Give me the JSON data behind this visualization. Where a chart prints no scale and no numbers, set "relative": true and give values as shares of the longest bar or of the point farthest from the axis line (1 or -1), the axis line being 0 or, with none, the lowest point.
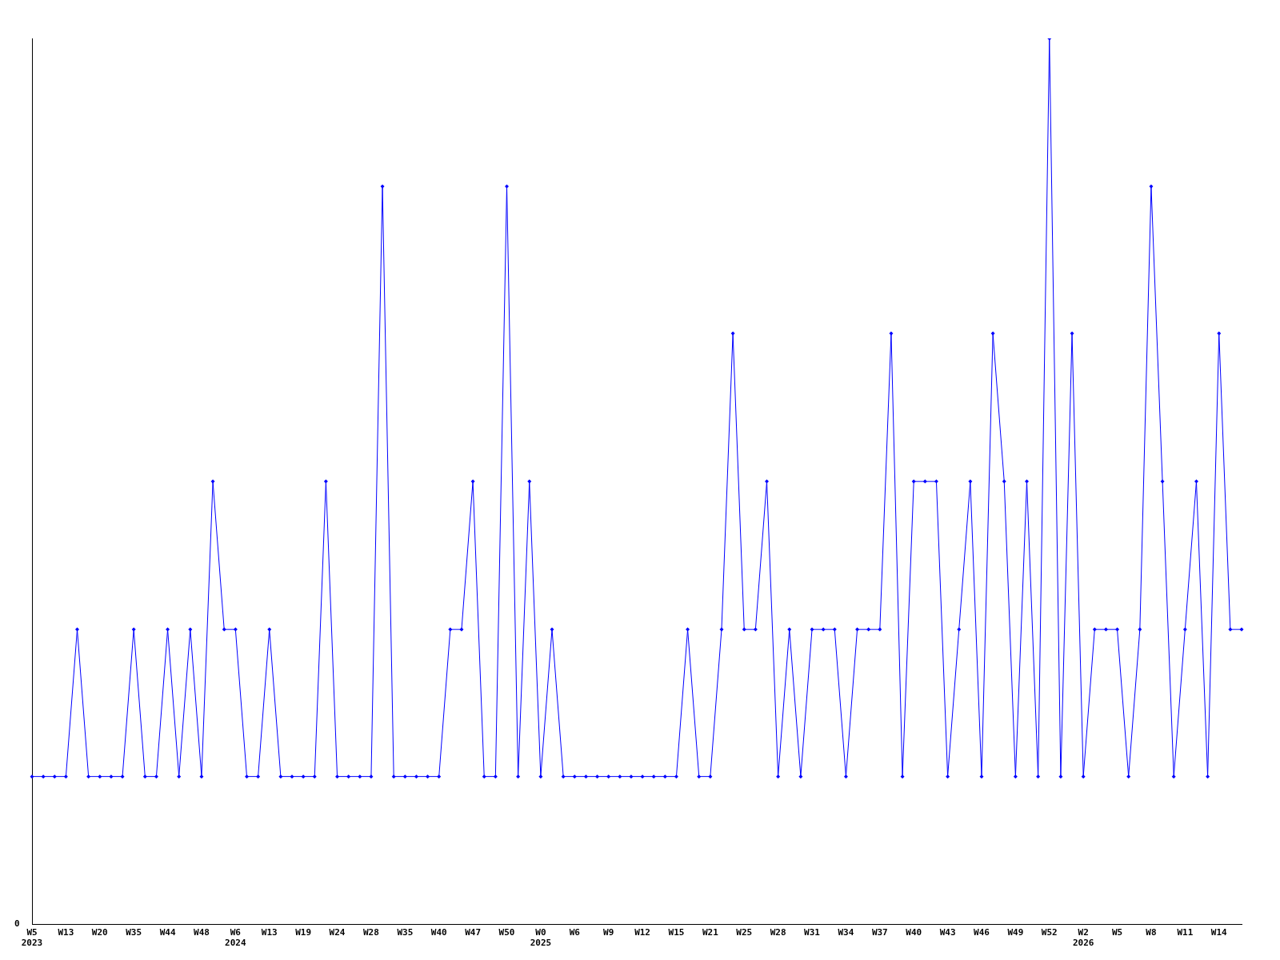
{
  "chart_data": {
    "type": "line",
    "relative": true,
    "color": "#0000ff",
    "marker": "diamond",
    "grid": false,
    "legend": false,
    "annotations": [
      "0"
    ],
    "categories": [
      "W5\n2023",
      null,
      null,
      "W13",
      null,
      null,
      "W20",
      null,
      null,
      "W35",
      null,
      null,
      "W44",
      null,
      null,
      "W48",
      null,
      null,
      "W6\n2024",
      null,
      null,
      "W13",
      null,
      null,
      "W19",
      null,
      null,
      "W24",
      null,
      null,
      "W28",
      null,
      null,
      "W35",
      null,
      null,
      "W40",
      null,
      null,
      "W47",
      null,
      null,
      "W50",
      null,
      null,
      "W0\n2025",
      null,
      null,
      "W6",
      null,
      null,
      "W9",
      null,
      null,
      "W12",
      null,
      null,
      "W15",
      null,
      null,
      "W21",
      null,
      null,
      "W25",
      null,
      null,
      "W28",
      null,
      null,
      "W31",
      null,
      null,
      "W34",
      null,
      null,
      "W37",
      null,
      null,
      "W40",
      null,
      null,
      "W43",
      null,
      null,
      "W46",
      null,
      null,
      "W49",
      null,
      null,
      "W52",
      null,
      null,
      "W2\n2026",
      null,
      null,
      "W5",
      null,
      null,
      "W8",
      null,
      null,
      "W11",
      null,
      null,
      "W14",
      null,
      null
    ],
    "values": [
      0.167,
      0.167,
      0.167,
      0.167,
      0.333,
      0.167,
      0.167,
      0.167,
      0.167,
      0.333,
      0.167,
      0.167,
      0.333,
      0.167,
      0.333,
      0.167,
      0.5,
      0.333,
      0.333,
      0.167,
      0.167,
      0.333,
      0.167,
      0.167,
      0.167,
      0.167,
      0.5,
      0.167,
      0.167,
      0.167,
      0.167,
      0.833,
      0.167,
      0.167,
      0.167,
      0.167,
      0.167,
      0.333,
      0.333,
      0.5,
      0.167,
      0.167,
      0.833,
      0.167,
      0.5,
      0.167,
      0.333,
      0.167,
      0.167,
      0.167,
      0.167,
      0.167,
      0.167,
      0.167,
      0.167,
      0.167,
      0.167,
      0.167,
      0.333,
      0.167,
      0.167,
      0.333,
      0.667,
      0.333,
      0.333,
      0.5,
      0.167,
      0.333,
      0.167,
      0.333,
      0.333,
      0.333,
      0.167,
      0.333,
      0.333,
      0.333,
      0.667,
      0.167,
      0.5,
      0.5,
      0.5,
      0.167,
      0.333,
      0.5,
      0.167,
      0.667,
      0.5,
      0.167,
      0.5,
      0.167,
      1,
      0.167,
      0.667,
      0.167,
      0.333,
      0.333,
      0.333,
      0.167,
      0.333,
      0.833,
      0.5,
      0.167,
      0.333,
      0.5,
      0.167,
      0.667,
      0.333,
      0.333
    ]
  }
}
